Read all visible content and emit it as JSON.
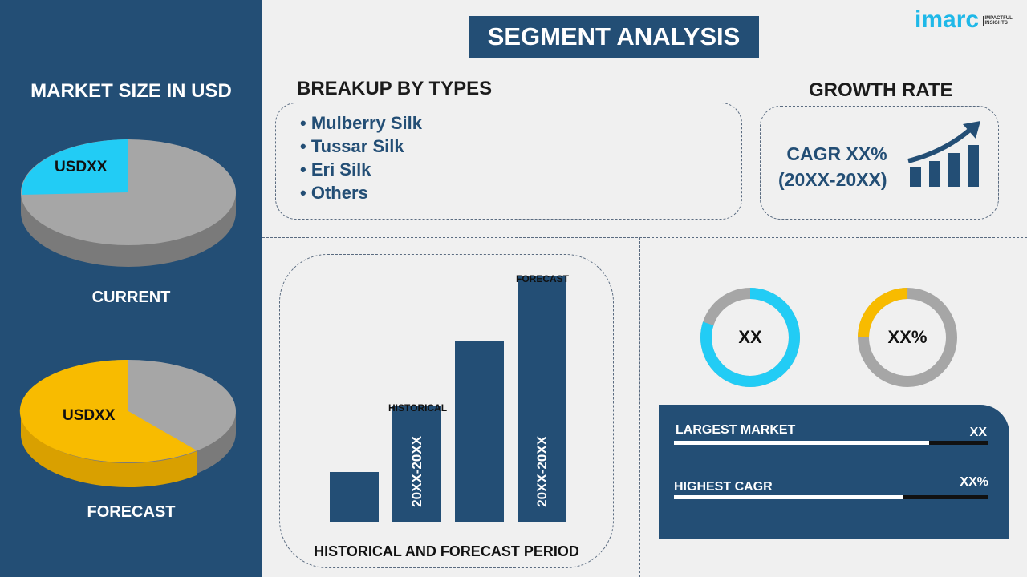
{
  "title": "SEGMENT ANALYSIS",
  "logo": {
    "text": "imarc",
    "tagline": "IMPACTFUL INSIGHTS"
  },
  "left": {
    "heading": "MARKET SIZE IN USD",
    "current": {
      "label": "CURRENT",
      "value": "USDXX",
      "share_percent": 20
    },
    "forecast": {
      "label": "FORECAST",
      "value": "USDXX",
      "share_percent": 62
    }
  },
  "breakup": {
    "heading": "BREAKUP BY TYPES",
    "items": [
      "Mulberry Silk",
      "Tussar Silk",
      "Eri Silk",
      "Others"
    ]
  },
  "growth": {
    "heading": "GROWTH RATE",
    "cagr": "CAGR XX%",
    "period": "(20XX-20XX)"
  },
  "chart": {
    "caption": "HISTORICAL AND FORECAST PERIOD",
    "historical_label": "HISTORICAL",
    "forecast_label": "FORECAST",
    "bar_text": "20XX-20XX",
    "bars": [
      1,
      2.3,
      3.6,
      4.9
    ]
  },
  "donuts": [
    {
      "value": "XX",
      "fill_percent": 80,
      "color": "#22ccf5"
    },
    {
      "value": "XX%",
      "fill_percent": 25,
      "color": "#f8bb00"
    }
  ],
  "stats": [
    {
      "label": "LARGEST MARKET",
      "value": "XX",
      "fill_percent": 81
    },
    {
      "label": "HIGHEST CAGR",
      "value": "XX%",
      "fill_percent": 73
    }
  ],
  "colors": {
    "navy": "#234e75",
    "cyan": "#22ccf5",
    "yellow": "#f8bb00",
    "gray": "#a6a6a6"
  }
}
